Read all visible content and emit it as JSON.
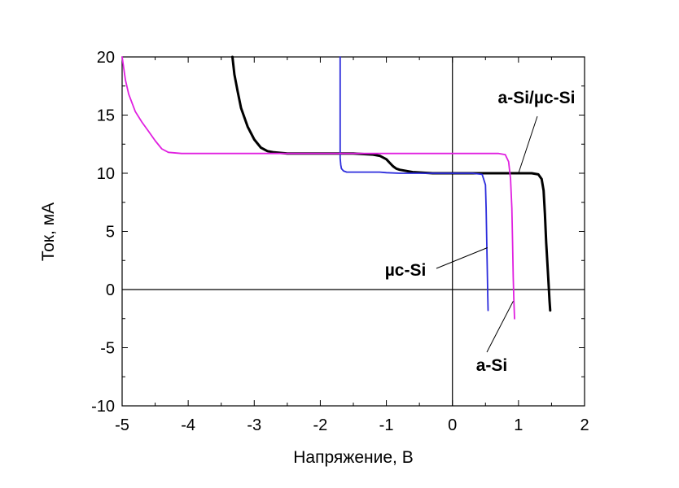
{
  "chart_data": {
    "type": "line",
    "title": "",
    "xlabel": "Напряжение, В",
    "ylabel": "Ток, мА",
    "xlim": [
      -5,
      2
    ],
    "ylim": [
      -10,
      20
    ],
    "xticks": [
      -5,
      -4,
      -3,
      -2,
      -1,
      0,
      1,
      2
    ],
    "yticks": [
      -10,
      -5,
      0,
      5,
      10,
      15,
      20
    ],
    "xtick_labels": [
      "-5",
      "-4",
      "-3",
      "-2",
      "-1",
      "0",
      "1",
      "2"
    ],
    "ytick_labels": [
      "-10",
      "-5",
      "0",
      "5",
      "10",
      "15",
      "20"
    ],
    "grid": false,
    "zero_lines": true,
    "series": [
      {
        "name": "a-Si/µc-Si",
        "color": "#000000",
        "x": [
          -3.33,
          -3.3,
          -3.25,
          -3.2,
          -3.1,
          -3.0,
          -2.9,
          -2.8,
          -2.7,
          -2.5,
          -2.0,
          -1.5,
          -1.2,
          -1.1,
          -1.0,
          -0.95,
          -0.9,
          -0.85,
          -0.8,
          -0.6,
          -0.3,
          0.0,
          0.5,
          1.0,
          1.2,
          1.3,
          1.35,
          1.38,
          1.4,
          1.42,
          1.45,
          1.47,
          1.48
        ],
        "y": [
          20.0,
          18.5,
          17.0,
          15.6,
          14.0,
          12.9,
          12.2,
          11.9,
          11.8,
          11.7,
          11.7,
          11.7,
          11.6,
          11.5,
          11.2,
          10.9,
          10.6,
          10.4,
          10.3,
          10.1,
          10.0,
          10.0,
          10.0,
          10.0,
          10.0,
          9.9,
          9.5,
          8.5,
          6.5,
          4.0,
          1.0,
          -1.0,
          -1.8
        ]
      },
      {
        "name": "µc-Si",
        "color": "#2c2cdc",
        "x": [
          -1.7,
          -1.7,
          -1.7,
          -1.69,
          -1.68,
          -1.65,
          -1.6,
          -1.5,
          -1.3,
          -1.1,
          -1.0,
          -0.8,
          -0.5,
          -0.2,
          0.0,
          0.3,
          0.45,
          0.5,
          0.51,
          0.52,
          0.53,
          0.535,
          0.54
        ],
        "y": [
          20.0,
          14.0,
          11.3,
          10.7,
          10.4,
          10.2,
          10.1,
          10.1,
          10.1,
          10.1,
          10.05,
          10.0,
          10.0,
          10.0,
          10.0,
          10.0,
          9.9,
          9.0,
          7.0,
          4.0,
          1.0,
          -0.5,
          -1.8
        ]
      },
      {
        "name": "a-Si",
        "color": "#e020e0",
        "x": [
          -5.0,
          -4.95,
          -4.9,
          -4.8,
          -4.7,
          -4.6,
          -4.5,
          -4.4,
          -4.3,
          -4.1,
          -4.0,
          -3.0,
          -2.0,
          -1.0,
          0.0,
          0.5,
          0.7,
          0.8,
          0.85,
          0.88,
          0.9,
          0.91,
          0.92,
          0.93,
          0.94
        ],
        "y": [
          20.0,
          18.0,
          16.8,
          15.3,
          14.4,
          13.6,
          12.8,
          12.1,
          11.8,
          11.7,
          11.7,
          11.7,
          11.7,
          11.7,
          11.7,
          11.7,
          11.7,
          11.6,
          11.0,
          9.5,
          7.0,
          4.0,
          1.0,
          -1.0,
          -2.5
        ]
      }
    ],
    "annotations": [
      {
        "text": "a-Si/µc-Si",
        "series": "a-Si/µc-Si",
        "target": [
          1.0,
          10.0
        ]
      },
      {
        "text": "µc-Si",
        "series": "µc-Si",
        "target": [
          0.53,
          3.6
        ]
      },
      {
        "text": "a-Si",
        "series": "a-Si",
        "target": [
          0.92,
          -1.0
        ]
      }
    ]
  }
}
